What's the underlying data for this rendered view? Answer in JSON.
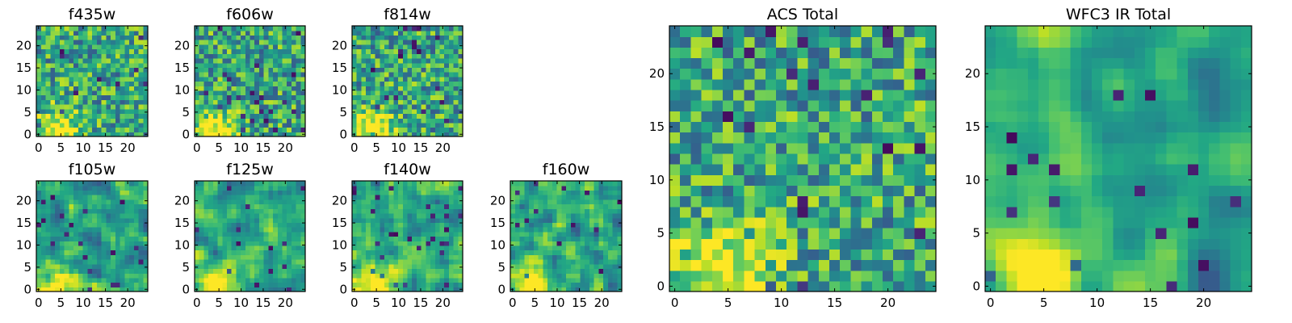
{
  "chart_data": [
    {
      "type": "heatmap",
      "title": "f435w",
      "colormap": "viridis",
      "grid_size": [
        24,
        24
      ],
      "xlim": [
        0,
        24
      ],
      "ylim": [
        0,
        24
      ],
      "xticks": [
        0,
        5,
        10,
        15,
        20
      ],
      "yticks": [
        0,
        5,
        10,
        15,
        20
      ],
      "values_generator": "pixel-noise",
      "seed": 11,
      "smooth": 0,
      "bright_corner": true
    },
    {
      "type": "heatmap",
      "title": "f606w",
      "colormap": "viridis",
      "grid_size": [
        24,
        24
      ],
      "xlim": [
        0,
        24
      ],
      "ylim": [
        0,
        24
      ],
      "xticks": [
        0,
        5,
        10,
        15,
        20
      ],
      "yticks": [
        0,
        5,
        10,
        15,
        20
      ],
      "values_generator": "pixel-noise",
      "seed": 23,
      "smooth": 0,
      "bright_corner": true
    },
    {
      "type": "heatmap",
      "title": "f814w",
      "colormap": "viridis",
      "grid_size": [
        24,
        24
      ],
      "xlim": [
        0,
        24
      ],
      "ylim": [
        0,
        24
      ],
      "xticks": [
        0,
        5,
        10,
        15,
        20
      ],
      "yticks": [
        0,
        5,
        10,
        15,
        20
      ],
      "values_generator": "pixel-noise",
      "seed": 37,
      "smooth": 0,
      "bright_corner": true
    },
    {
      "type": "heatmap",
      "title": "f105w",
      "colormap": "viridis",
      "grid_size": [
        24,
        24
      ],
      "xlim": [
        0,
        24
      ],
      "ylim": [
        0,
        24
      ],
      "xticks": [
        0,
        5,
        10,
        15,
        20
      ],
      "yticks": [
        0,
        5,
        10,
        15,
        20
      ],
      "values_generator": "pixel-noise",
      "seed": 41,
      "smooth": 1,
      "bright_corner": true
    },
    {
      "type": "heatmap",
      "title": "f125w",
      "colormap": "viridis",
      "grid_size": [
        24,
        24
      ],
      "xlim": [
        0,
        24
      ],
      "ylim": [
        0,
        24
      ],
      "xticks": [
        0,
        5,
        10,
        15,
        20
      ],
      "yticks": [
        0,
        5,
        10,
        15,
        20
      ],
      "values_generator": "pixel-noise",
      "seed": 53,
      "smooth": 1,
      "bright_corner": true
    },
    {
      "type": "heatmap",
      "title": "f140w",
      "colormap": "viridis",
      "grid_size": [
        24,
        24
      ],
      "xlim": [
        0,
        24
      ],
      "ylim": [
        0,
        24
      ],
      "xticks": [
        0,
        5,
        10,
        15,
        20
      ],
      "yticks": [
        0,
        5,
        10,
        15,
        20
      ],
      "values_generator": "pixel-noise",
      "seed": 67,
      "smooth": 1,
      "bright_corner": true
    },
    {
      "type": "heatmap",
      "title": "f160w",
      "colormap": "viridis",
      "grid_size": [
        24,
        24
      ],
      "xlim": [
        0,
        24
      ],
      "ylim": [
        0,
        24
      ],
      "xticks": [
        0,
        5,
        10,
        15,
        20
      ],
      "yticks": [
        0,
        5,
        10,
        15,
        20
      ],
      "values_generator": "pixel-noise",
      "seed": 79,
      "smooth": 1,
      "bright_corner": true
    },
    {
      "type": "heatmap",
      "title": "ACS Total",
      "colormap": "viridis",
      "grid_size": [
        25,
        25
      ],
      "xlim": [
        0,
        24
      ],
      "ylim": [
        0,
        24
      ],
      "xticks": [
        0,
        5,
        10,
        15,
        20
      ],
      "yticks": [
        0,
        5,
        10,
        15,
        20
      ],
      "values_generator": "pixel-noise",
      "seed": 97,
      "smooth": 0,
      "bright_corner": true
    },
    {
      "type": "heatmap",
      "title": "WFC3 IR Total",
      "colormap": "viridis",
      "grid_size": [
        25,
        25
      ],
      "xlim": [
        0,
        24
      ],
      "ylim": [
        0,
        24
      ],
      "xticks": [
        0,
        5,
        10,
        15,
        20
      ],
      "yticks": [
        0,
        5,
        10,
        15,
        20
      ],
      "values_generator": "pixel-noise",
      "seed": 131,
      "smooth": 2,
      "bright_corner": true
    }
  ]
}
